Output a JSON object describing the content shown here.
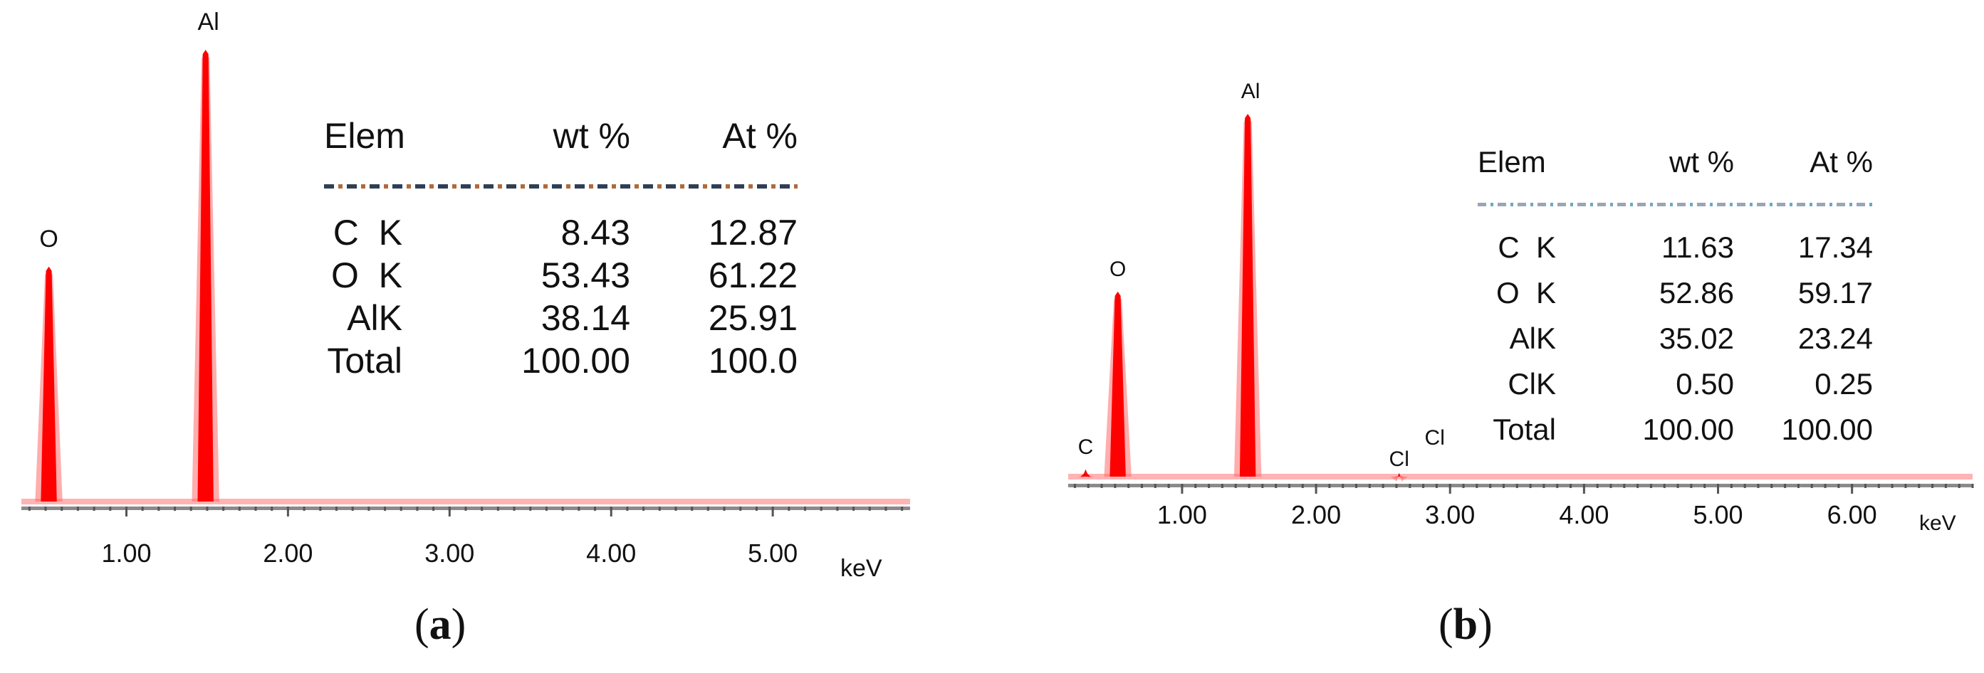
{
  "chart_data": [
    {
      "panel": "(a)",
      "type": "line",
      "title": "",
      "xlabel": "keV",
      "ylabel": "",
      "xlim": [
        0.35,
        5.85
      ],
      "ylim": [
        0,
        100
      ],
      "x_ticks": [
        1.0,
        2.0,
        3.0,
        4.0,
        5.0
      ],
      "x_tick_labels": [
        "1.00",
        "2.00",
        "3.00",
        "4.00",
        "5.00"
      ],
      "series": [
        {
          "name": "EDS spectrum",
          "color": "#ff0000",
          "peaks": [
            {
              "element": "O",
              "energy_keV": 0.52,
              "intensity": 52
            },
            {
              "element": "Al",
              "energy_keV": 1.49,
              "intensity": 100
            }
          ]
        }
      ],
      "peak_labels": [
        "O",
        "Al"
      ],
      "table": {
        "headers": [
          "Elem",
          "wt  %",
          "At  %"
        ],
        "rows": [
          [
            "C  K",
            "8.43",
            "12.87"
          ],
          [
            "O  K",
            "53.43",
            "61.22"
          ],
          [
            "AlK",
            "38.14",
            "25.91"
          ],
          [
            "Total",
            "100.00",
            "100.0"
          ]
        ]
      }
    },
    {
      "panel": "(b)",
      "type": "line",
      "title": "",
      "xlabel": "keV",
      "ylabel": "",
      "xlim": [
        0.15,
        6.9
      ],
      "ylim": [
        0,
        100
      ],
      "x_ticks": [
        1.0,
        2.0,
        3.0,
        4.0,
        5.0,
        6.0
      ],
      "x_tick_labels": [
        "1.00",
        "2.00",
        "3.00",
        "4.00",
        "5.00",
        "6.00"
      ],
      "series": [
        {
          "name": "EDS spectrum",
          "color": "#ff0000",
          "peaks": [
            {
              "element": "C",
              "energy_keV": 0.28,
              "intensity": 2
            },
            {
              "element": "O",
              "energy_keV": 0.52,
              "intensity": 51
            },
            {
              "element": "Al",
              "energy_keV": 1.49,
              "intensity": 100
            },
            {
              "element": "Cl",
              "energy_keV": 2.62,
              "intensity": 1
            }
          ]
        }
      ],
      "peak_labels": [
        "C",
        "O",
        "Al",
        "Cl",
        "Cl"
      ],
      "table": {
        "headers": [
          "Elem",
          "wt  %",
          "At  %"
        ],
        "rows": [
          [
            "C  K",
            "11.63",
            "17.34"
          ],
          [
            "O  K",
            "52.86",
            "59.17"
          ],
          [
            "AlK",
            "35.02",
            "23.24"
          ],
          [
            "ClK",
            "0.50",
            "0.25"
          ],
          [
            "Total",
            "100.00",
            "100.00"
          ]
        ]
      }
    }
  ],
  "captions": {
    "a": "a",
    "b": "b"
  }
}
